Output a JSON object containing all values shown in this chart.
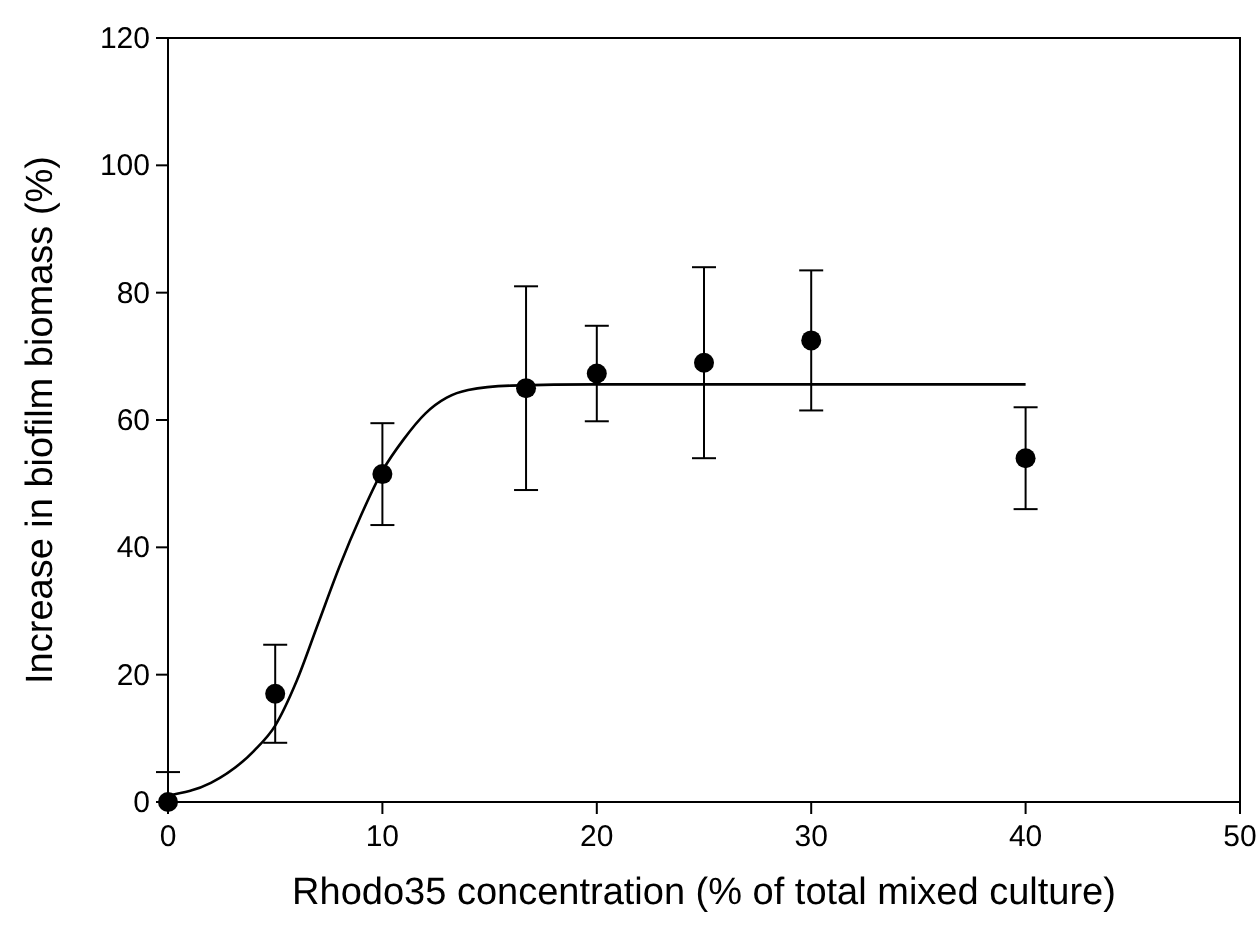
{
  "chart_data": {
    "type": "scatter",
    "xlabel": "Rhodo35 concentration (% of total mixed culture)",
    "ylabel": "Increase in biofilm biomass (%)",
    "xlim": [
      0,
      50
    ],
    "ylim": [
      0,
      120
    ],
    "xticks": [
      0,
      10,
      20,
      30,
      40,
      50
    ],
    "yticks": [
      0,
      20,
      40,
      60,
      80,
      100,
      120
    ],
    "grid": false,
    "series": [
      {
        "type": "line",
        "color": "#000000",
        "marker": "none",
        "x": [
          0,
          2,
          4,
          5,
          6,
          7,
          8,
          9,
          10,
          11,
          12,
          13,
          14,
          16,
          20,
          40
        ],
        "values": [
          1,
          3,
          8,
          12,
          19,
          28,
          37,
          45,
          52,
          57,
          61,
          63.5,
          64.7,
          65.4,
          65.6,
          65.6
        ]
      },
      {
        "color": "#000000",
        "marker": "circle",
        "x": [
          0,
          5,
          10,
          16.7,
          20,
          25,
          30,
          40
        ],
        "values": [
          0,
          17,
          51.5,
          65,
          67.3,
          69,
          72.5,
          54
        ],
        "errors": [
          [
            0,
            4.7
          ],
          7.7,
          8,
          16,
          7.5,
          15,
          11,
          8
        ]
      }
    ]
  }
}
